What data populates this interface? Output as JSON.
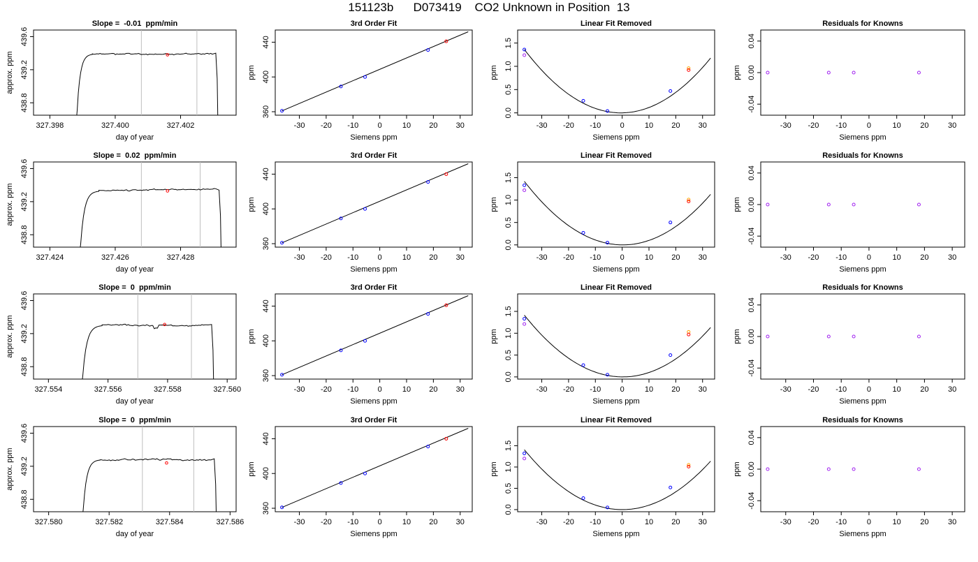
{
  "page": {
    "title": "151123b      D073419    CO2 Unknown in Position  13"
  },
  "colors": {
    "axis": "#000000",
    "trace": "#000000",
    "grey_line": "#bebebe",
    "red": "#ff0000",
    "blue": "#0000ff",
    "purple": "#a020f0",
    "orange": "#ffa500"
  },
  "chart_data": [
    {
      "id": "r1c1",
      "type": "line",
      "title": "Slope =  -0.01  ppm/min",
      "xlabel": "day of year",
      "ylabel": "approx. ppm",
      "xlim": [
        327.3975,
        327.4037
      ],
      "ylim": [
        438.65,
        439.68
      ],
      "xticks": [
        327.398,
        327.4,
        327.402
      ],
      "xticklabels": [
        "327.398",
        "327.400",
        "327.402"
      ],
      "yticks": [
        438.8,
        439.2,
        439.6
      ],
      "yticklabels": [
        "438.8",
        "439.2",
        "439.6"
      ],
      "trace": {
        "start": 327.3988,
        "rise_end": 327.3993,
        "end": 327.4031,
        "level": 439.39,
        "noise": 0.014,
        "seed": 11
      },
      "vlines": [
        327.4008,
        327.4025
      ],
      "marker": {
        "x": 327.4016,
        "y": 439.38
      }
    },
    {
      "id": "r1c2",
      "type": "scatter",
      "title": "3rd Order Fit",
      "xlabel": "Siemens ppm",
      "ylabel": "ppm",
      "xlim": [
        -39,
        34.5
      ],
      "ylim": [
        356,
        454
      ],
      "xticks": [
        -30,
        -20,
        -10,
        0,
        10,
        20,
        30
      ],
      "yticks": [
        360,
        400,
        440
      ],
      "fit": [
        [
          -36.5,
          361
        ],
        [
          33,
          452
        ]
      ],
      "points": [
        {
          "x": -36.5,
          "y": 361,
          "c": "blue"
        },
        {
          "x": -14.5,
          "y": 389,
          "c": "blue"
        },
        {
          "x": -5.5,
          "y": 400,
          "c": "blue"
        },
        {
          "x": 18,
          "y": 431,
          "c": "blue"
        },
        {
          "x": 24.8,
          "y": 441,
          "c": "red"
        }
      ]
    },
    {
      "id": "r1c3",
      "type": "scatter",
      "title": "Linear Fit Removed",
      "xlabel": "Siemens ppm",
      "ylabel": "ppm",
      "xlim": [
        -39,
        34.5
      ],
      "ylim": [
        -0.05,
        1.78
      ],
      "xticks": [
        -30,
        -20,
        -10,
        0,
        10,
        20,
        30
      ],
      "yticks": [
        0.0,
        0.5,
        1.0,
        1.5
      ],
      "yticklabels": [
        "0.0",
        "0.5",
        "1.0",
        "1.5"
      ],
      "curve": {
        "a": 0.00105,
        "b": 0.001,
        "c": 0.0002,
        "x0": -36.5,
        "x1": 33
      },
      "points": [
        {
          "x": -36.5,
          "y": 1.36,
          "c": "blue"
        },
        {
          "x": -36.5,
          "y": 1.24,
          "c": "purple"
        },
        {
          "x": -14.5,
          "y": 0.26,
          "c": "blue"
        },
        {
          "x": -5.5,
          "y": 0.04,
          "c": "blue"
        },
        {
          "x": 18,
          "y": 0.47,
          "c": "blue"
        },
        {
          "x": 24.8,
          "y": 0.96,
          "c": "orange"
        },
        {
          "x": 24.8,
          "y": 0.92,
          "c": "red"
        }
      ]
    },
    {
      "id": "r1c4",
      "type": "scatter",
      "title": "Residuals for Knowns",
      "xlabel": "Siemens ppm",
      "ylabel": "ppm",
      "xlim": [
        -39,
        34.5
      ],
      "ylim": [
        -0.054,
        0.054
      ],
      "xticks": [
        -30,
        -20,
        -10,
        0,
        10,
        20,
        30
      ],
      "yticks": [
        -0.04,
        0.0,
        0.04
      ],
      "yticklabels": [
        "-0.04",
        "0.00",
        "0.04"
      ],
      "points": [
        {
          "x": -36.5,
          "y": 0,
          "c": "purple"
        },
        {
          "x": -14.5,
          "y": 0,
          "c": "purple"
        },
        {
          "x": -5.5,
          "y": 0,
          "c": "purple"
        },
        {
          "x": 18,
          "y": 0,
          "c": "purple"
        }
      ]
    },
    {
      "id": "r2c1",
      "type": "line",
      "title": "Slope =  0.02  ppm/min",
      "xlabel": "day of year",
      "ylabel": "approx. ppm",
      "xlim": [
        327.4235,
        327.4297
      ],
      "ylim": [
        438.65,
        439.68
      ],
      "xticks": [
        327.424,
        327.426,
        327.428
      ],
      "xticklabels": [
        "327.424",
        "327.426",
        "327.428"
      ],
      "yticks": [
        438.8,
        439.2,
        439.6
      ],
      "yticklabels": [
        "438.8",
        "439.2",
        "439.6"
      ],
      "trace": {
        "start": 327.4249,
        "rise_end": 327.4255,
        "end": 327.4292,
        "level": 439.33,
        "noise": 0.014,
        "seed": 23,
        "slope": 6
      },
      "vlines": [
        327.4268,
        327.4286
      ],
      "marker": {
        "x": 327.4276,
        "y": 439.33
      }
    },
    {
      "id": "r2c2",
      "type": "scatter",
      "title": "3rd Order Fit",
      "xlabel": "Siemens ppm",
      "ylabel": "ppm",
      "xlim": [
        -39,
        34.5
      ],
      "ylim": [
        356,
        454
      ],
      "xticks": [
        -30,
        -20,
        -10,
        0,
        10,
        20,
        30
      ],
      "yticks": [
        360,
        400,
        440
      ],
      "fit": [
        [
          -36.5,
          361
        ],
        [
          33,
          452
        ]
      ],
      "points": [
        {
          "x": -36.5,
          "y": 361,
          "c": "blue"
        },
        {
          "x": -14.5,
          "y": 389,
          "c": "blue"
        },
        {
          "x": -5.5,
          "y": 400,
          "c": "blue"
        },
        {
          "x": 18,
          "y": 431,
          "c": "blue"
        },
        {
          "x": 24.8,
          "y": 440,
          "c": "red"
        }
      ]
    },
    {
      "id": "r2c3",
      "type": "scatter",
      "title": "Linear Fit Removed",
      "xlabel": "Siemens ppm",
      "ylabel": "ppm",
      "xlim": [
        -39,
        34.5
      ],
      "ylim": [
        -0.05,
        1.85
      ],
      "xticks": [
        -30,
        -20,
        -10,
        0,
        10,
        20,
        30
      ],
      "yticks": [
        0.0,
        0.5,
        1.0,
        1.5
      ],
      "yticklabels": [
        "0.0",
        "0.5",
        "1.0",
        "1.5"
      ],
      "curve": {
        "a": 0.00105,
        "b": -0.0005,
        "c": 0.0002,
        "x0": -36.5,
        "x1": 33
      },
      "points": [
        {
          "x": -36.5,
          "y": 1.33,
          "c": "blue"
        },
        {
          "x": -36.5,
          "y": 1.22,
          "c": "purple"
        },
        {
          "x": -14.5,
          "y": 0.27,
          "c": "blue"
        },
        {
          "x": -5.5,
          "y": 0.05,
          "c": "blue"
        },
        {
          "x": 18,
          "y": 0.5,
          "c": "blue"
        },
        {
          "x": 24.8,
          "y": 1.01,
          "c": "orange"
        },
        {
          "x": 24.8,
          "y": 0.97,
          "c": "red"
        }
      ]
    },
    {
      "id": "r2c4",
      "type": "scatter",
      "title": "Residuals for Knowns",
      "xlabel": "Siemens ppm",
      "ylabel": "ppm",
      "xlim": [
        -39,
        34.5
      ],
      "ylim": [
        -0.054,
        0.054
      ],
      "xticks": [
        -30,
        -20,
        -10,
        0,
        10,
        20,
        30
      ],
      "yticks": [
        -0.04,
        0.0,
        0.04
      ],
      "yticklabels": [
        "-0.04",
        "0.00",
        "0.04"
      ],
      "points": [
        {
          "x": -36.5,
          "y": 0,
          "c": "purple"
        },
        {
          "x": -14.5,
          "y": 0,
          "c": "purple"
        },
        {
          "x": -5.5,
          "y": 0,
          "c": "purple"
        },
        {
          "x": 18,
          "y": 0,
          "c": "purple"
        }
      ]
    },
    {
      "id": "r3c1",
      "type": "line",
      "title": "Slope =  0  ppm/min",
      "xlabel": "day of year",
      "ylabel": "approx. ppm",
      "xlim": [
        327.5535,
        327.5603
      ],
      "ylim": [
        438.65,
        439.68
      ],
      "xticks": [
        327.554,
        327.556,
        327.558,
        327.56
      ],
      "xticklabels": [
        "327.554",
        "327.556",
        "327.558",
        "327.560"
      ],
      "yticks": [
        438.8,
        439.2,
        439.6
      ],
      "yticklabels": [
        "438.8",
        "439.2",
        "439.6"
      ],
      "trace": {
        "start": 327.5551,
        "rise_end": 327.5558,
        "end": 327.5595,
        "level": 439.3,
        "noise": 0.014,
        "seed": 37,
        "dip": 327.5576
      },
      "vlines": [
        327.557,
        327.5588
      ],
      "marker": {
        "x": 327.5579,
        "y": 439.31
      }
    },
    {
      "id": "r3c2",
      "type": "scatter",
      "title": "3rd Order Fit",
      "xlabel": "Siemens ppm",
      "ylabel": "ppm",
      "xlim": [
        -39,
        34.5
      ],
      "ylim": [
        356,
        454
      ],
      "xticks": [
        -30,
        -20,
        -10,
        0,
        10,
        20,
        30
      ],
      "yticks": [
        360,
        400,
        440
      ],
      "fit": [
        [
          -36.5,
          361
        ],
        [
          33,
          452
        ]
      ],
      "points": [
        {
          "x": -36.5,
          "y": 361,
          "c": "blue"
        },
        {
          "x": -14.5,
          "y": 389,
          "c": "blue"
        },
        {
          "x": -5.5,
          "y": 400,
          "c": "blue"
        },
        {
          "x": 18,
          "y": 431,
          "c": "blue"
        },
        {
          "x": 24.8,
          "y": 441,
          "c": "red"
        }
      ]
    },
    {
      "id": "r3c3",
      "type": "scatter",
      "title": "Linear Fit Removed",
      "xlabel": "Siemens ppm",
      "ylabel": "ppm",
      "xlim": [
        -39,
        34.5
      ],
      "ylim": [
        -0.05,
        1.9
      ],
      "xticks": [
        -30,
        -20,
        -10,
        0,
        10,
        20,
        30
      ],
      "yticks": [
        0.0,
        0.5,
        1.0,
        1.5
      ],
      "yticklabels": [
        "0.0",
        "0.5",
        "1.0",
        "1.5"
      ],
      "curve": {
        "a": 0.00105,
        "b": -0.0004,
        "c": 0.0002,
        "x0": -36.5,
        "x1": 33
      },
      "points": [
        {
          "x": -36.5,
          "y": 1.33,
          "c": "blue"
        },
        {
          "x": -36.5,
          "y": 1.21,
          "c": "purple"
        },
        {
          "x": -14.5,
          "y": 0.27,
          "c": "blue"
        },
        {
          "x": -5.5,
          "y": 0.05,
          "c": "blue"
        },
        {
          "x": 18,
          "y": 0.5,
          "c": "blue"
        },
        {
          "x": 24.8,
          "y": 1.03,
          "c": "orange"
        },
        {
          "x": 24.8,
          "y": 0.97,
          "c": "red"
        }
      ]
    },
    {
      "id": "r3c4",
      "type": "scatter",
      "title": "Residuals for Knowns",
      "xlabel": "Siemens ppm",
      "ylabel": "ppm",
      "xlim": [
        -39,
        34.5
      ],
      "ylim": [
        -0.054,
        0.054
      ],
      "xticks": [
        -30,
        -20,
        -10,
        0,
        10,
        20,
        30
      ],
      "yticks": [
        -0.04,
        0.0,
        0.04
      ],
      "yticklabels": [
        "-0.04",
        "0.00",
        "0.04"
      ],
      "points": [
        {
          "x": -36.5,
          "y": 0,
          "c": "purple"
        },
        {
          "x": -14.5,
          "y": 0,
          "c": "purple"
        },
        {
          "x": -5.5,
          "y": 0,
          "c": "purple"
        },
        {
          "x": 18,
          "y": 0,
          "c": "purple"
        }
      ]
    },
    {
      "id": "r4c1",
      "type": "line",
      "title": "Slope =  0  ppm/min",
      "xlabel": "day of year",
      "ylabel": "approx. ppm",
      "xlim": [
        327.5795,
        327.5862
      ],
      "ylim": [
        438.65,
        439.68
      ],
      "xticks": [
        327.58,
        327.582,
        327.584,
        327.586
      ],
      "xticklabels": [
        "327.580",
        "327.582",
        "327.584",
        "327.586"
      ],
      "yticks": [
        438.8,
        439.2,
        439.6
      ],
      "yticklabels": [
        "438.8",
        "439.2",
        "439.6"
      ],
      "trace": {
        "start": 327.5811,
        "rise_end": 327.5817,
        "end": 327.5855,
        "level": 439.28,
        "noise": 0.015,
        "seed": 53
      },
      "vlines": [
        327.5831,
        327.5848
      ],
      "marker": {
        "x": 327.5839,
        "y": 439.24
      }
    },
    {
      "id": "r4c2",
      "type": "scatter",
      "title": "3rd Order Fit",
      "xlabel": "Siemens ppm",
      "ylabel": "ppm",
      "xlim": [
        -39,
        34.5
      ],
      "ylim": [
        356,
        454
      ],
      "xticks": [
        -30,
        -20,
        -10,
        0,
        10,
        20,
        30
      ],
      "yticks": [
        360,
        400,
        440
      ],
      "fit": [
        [
          -36.5,
          361
        ],
        [
          33,
          452
        ]
      ],
      "points": [
        {
          "x": -36.5,
          "y": 361,
          "c": "blue"
        },
        {
          "x": -14.5,
          "y": 389,
          "c": "blue"
        },
        {
          "x": -5.5,
          "y": 400,
          "c": "blue"
        },
        {
          "x": 18,
          "y": 431,
          "c": "blue"
        },
        {
          "x": 24.8,
          "y": 440,
          "c": "red"
        }
      ]
    },
    {
      "id": "r4c3",
      "type": "scatter",
      "title": "Linear Fit Removed",
      "xlabel": "Siemens ppm",
      "ylabel": "ppm",
      "xlim": [
        -39,
        34.5
      ],
      "ylim": [
        -0.05,
        1.95
      ],
      "xticks": [
        -30,
        -20,
        -10,
        0,
        10,
        20,
        30
      ],
      "yticks": [
        0.0,
        0.5,
        1.0,
        1.5
      ],
      "yticklabels": [
        "0.0",
        "0.5",
        "1.0",
        "1.5"
      ],
      "curve": {
        "a": 0.00105,
        "b": -0.0002,
        "c": 0.0002,
        "x0": -36.5,
        "x1": 33
      },
      "points": [
        {
          "x": -36.5,
          "y": 1.32,
          "c": "blue"
        },
        {
          "x": -36.5,
          "y": 1.2,
          "c": "purple"
        },
        {
          "x": -14.5,
          "y": 0.27,
          "c": "blue"
        },
        {
          "x": -5.5,
          "y": 0.05,
          "c": "blue"
        },
        {
          "x": 18,
          "y": 0.52,
          "c": "blue"
        },
        {
          "x": 24.8,
          "y": 1.05,
          "c": "orange"
        },
        {
          "x": 24.8,
          "y": 1.01,
          "c": "red"
        }
      ]
    },
    {
      "id": "r4c4",
      "type": "scatter",
      "title": "Residuals for Knowns",
      "xlabel": "Siemens ppm",
      "ylabel": "ppm",
      "xlim": [
        -39,
        34.5
      ],
      "ylim": [
        -0.054,
        0.054
      ],
      "xticks": [
        -30,
        -20,
        -10,
        0,
        10,
        20,
        30
      ],
      "yticks": [
        -0.04,
        0.0,
        0.04
      ],
      "yticklabels": [
        "-0.04",
        "0.00",
        "0.04"
      ],
      "points": [
        {
          "x": -36.5,
          "y": 0,
          "c": "purple"
        },
        {
          "x": -14.5,
          "y": 0,
          "c": "purple"
        },
        {
          "x": -5.5,
          "y": 0,
          "c": "purple"
        },
        {
          "x": 18,
          "y": 0,
          "c": "purple"
        }
      ]
    }
  ]
}
